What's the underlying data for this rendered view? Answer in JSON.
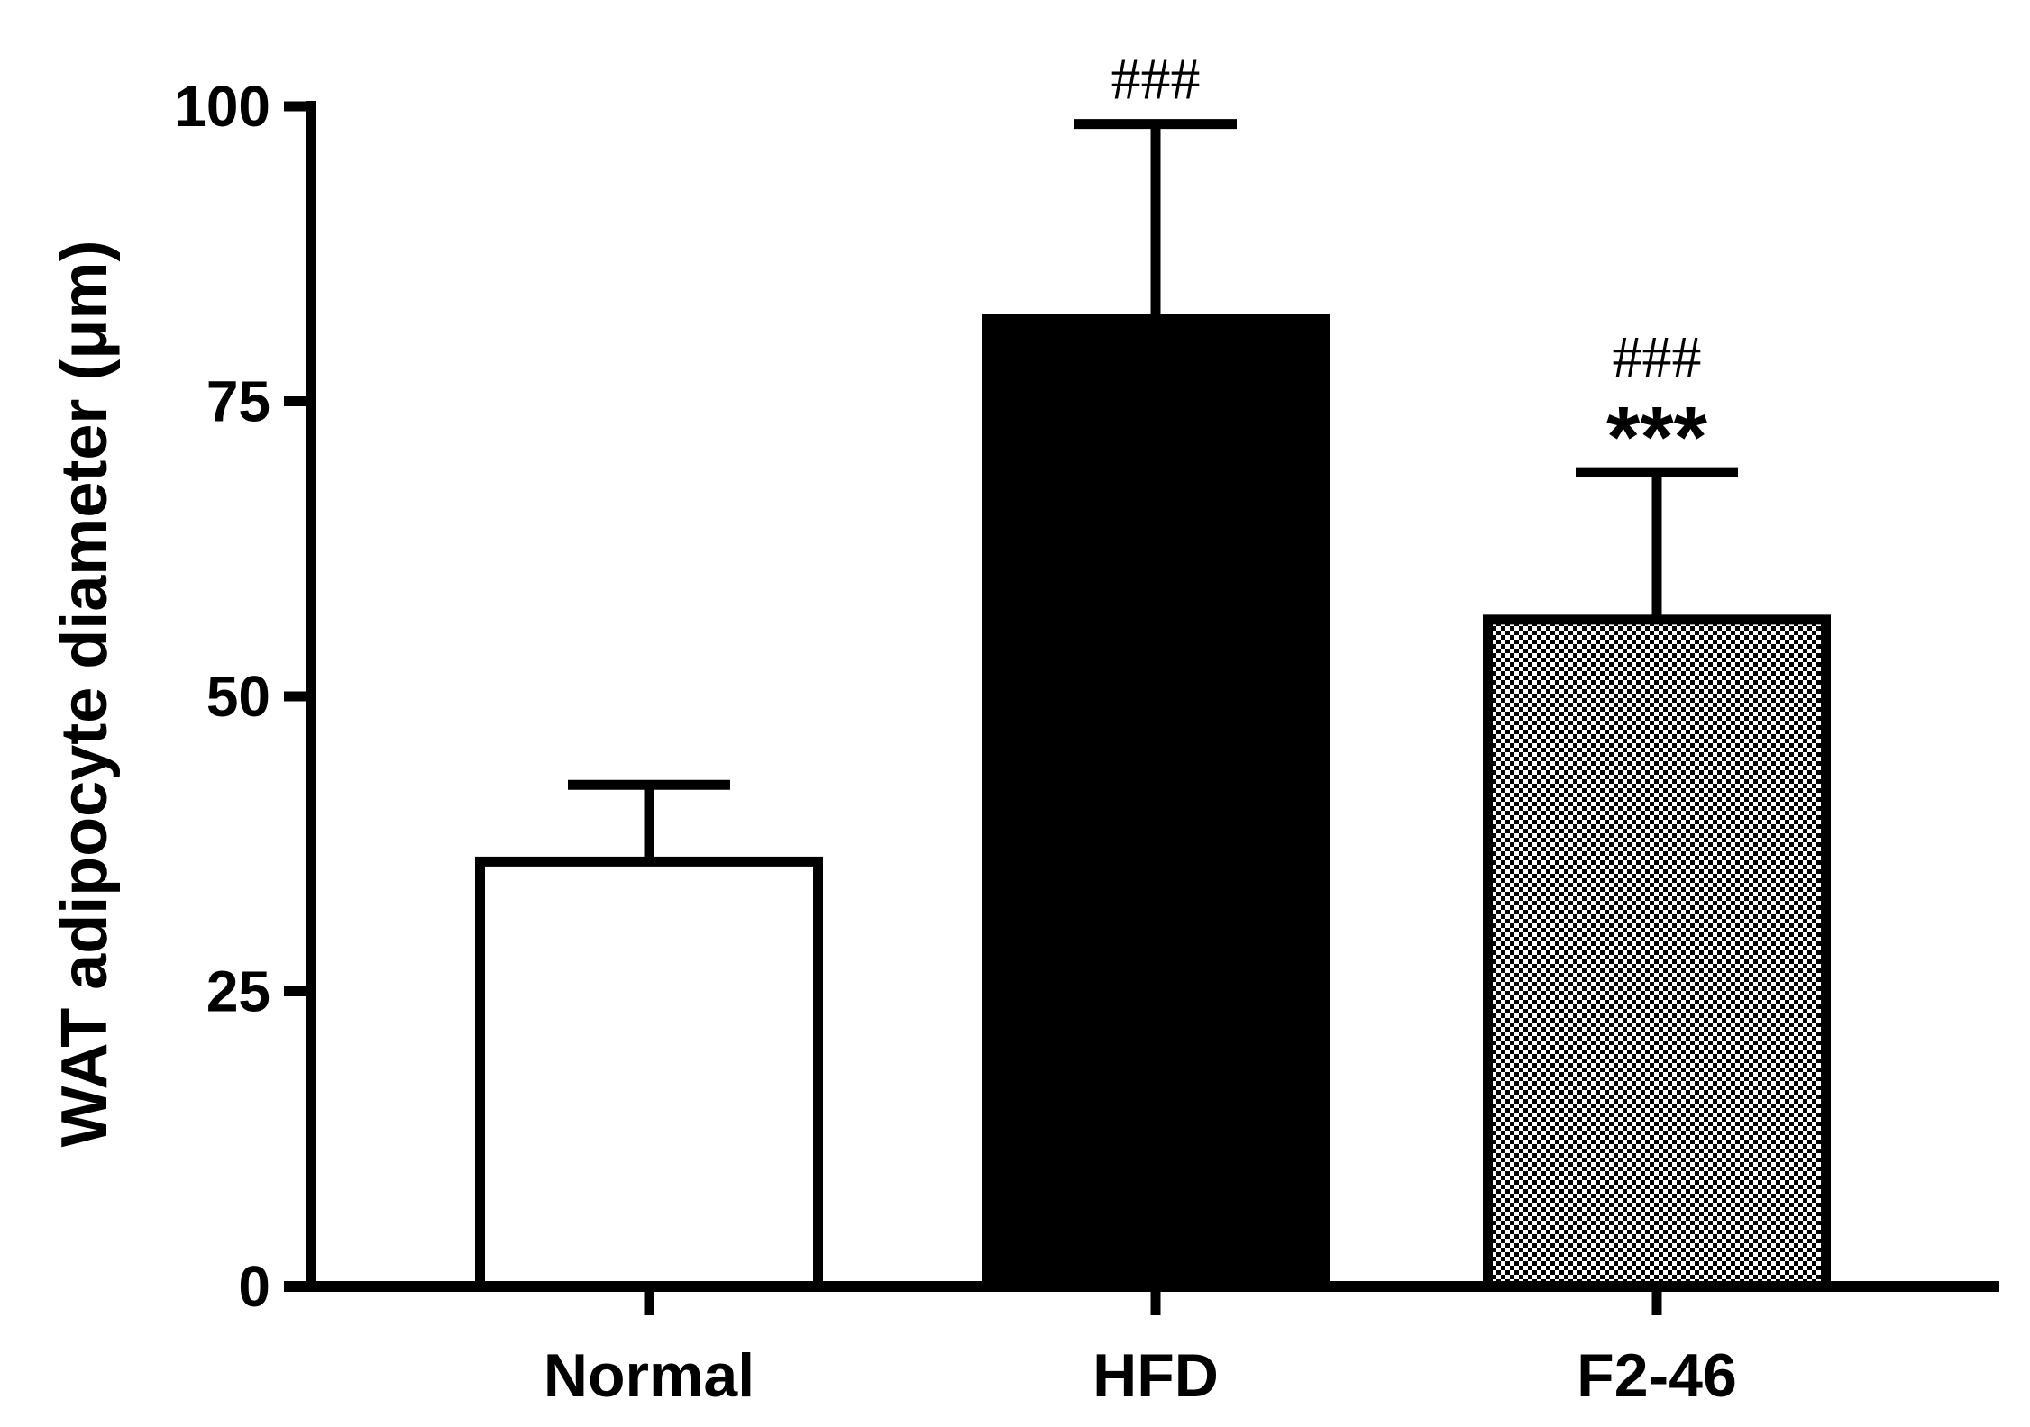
{
  "chart_data": {
    "type": "bar",
    "categories": [
      "Normal",
      "HFD",
      "F2-46"
    ],
    "values": [
      36,
      82,
      56.5
    ],
    "errors": [
      6.5,
      16.5,
      12.5
    ],
    "annotations": [
      {
        "category": "HFD",
        "lines": [
          "###"
        ]
      },
      {
        "category": "F2-46",
        "lines": [
          "###",
          "***"
        ]
      }
    ],
    "ylabel": "WAT adipocyte diameter (μm)",
    "ylim": [
      0,
      100
    ],
    "yticks": [
      0,
      25,
      50,
      75,
      100
    ],
    "fills": [
      "white",
      "black",
      "checker"
    ],
    "colors": {
      "stroke": "#000000",
      "background": "#ffffff",
      "checker_dark": "#000000",
      "checker_light": "#ffffff"
    },
    "grid": false
  }
}
